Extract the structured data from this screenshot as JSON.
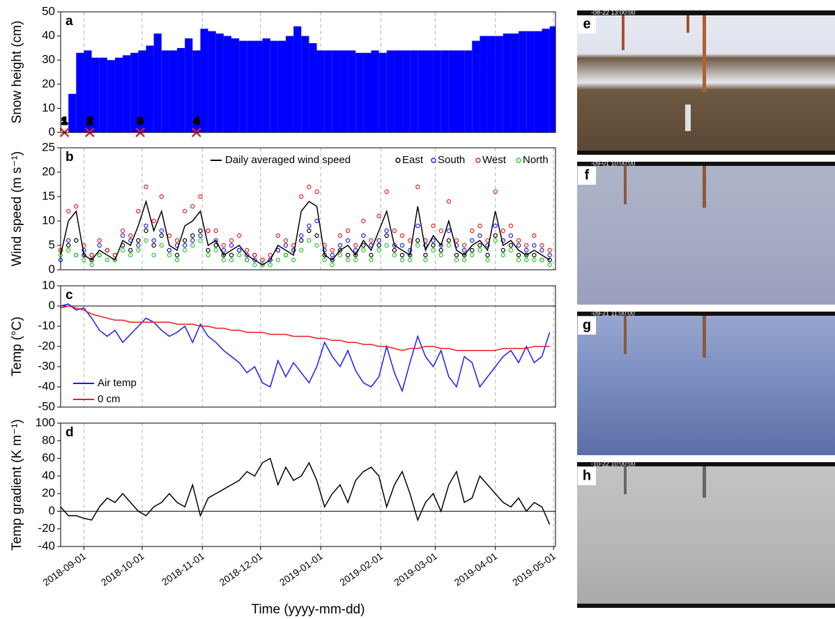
{
  "chart_data": [
    {
      "type": "bar",
      "label": "a",
      "ylabel": "Snow height (cm)",
      "x": [
        "2018-08-20",
        "2018-08-24",
        "2018-08-28",
        "2018-09-01",
        "2018-09-05",
        "2018-09-09",
        "2018-09-13",
        "2018-09-17",
        "2018-09-21",
        "2018-09-25",
        "2018-09-29",
        "2018-10-03",
        "2018-10-07",
        "2018-10-11",
        "2018-10-15",
        "2018-10-19",
        "2018-10-23",
        "2018-10-27",
        "2018-10-31",
        "2018-11-04",
        "2018-11-08",
        "2018-11-12",
        "2018-11-16",
        "2018-11-20",
        "2018-11-24",
        "2018-11-28",
        "2018-12-02",
        "2018-12-06",
        "2018-12-10",
        "2018-12-14",
        "2018-12-18",
        "2018-12-22",
        "2018-12-26",
        "2018-12-30",
        "2019-01-03",
        "2019-01-07",
        "2019-01-11",
        "2019-01-15",
        "2019-01-19",
        "2019-01-23",
        "2019-01-27",
        "2019-01-31",
        "2019-02-04",
        "2019-02-08",
        "2019-02-12",
        "2019-02-16",
        "2019-02-20",
        "2019-02-24",
        "2019-02-28",
        "2019-03-04",
        "2019-03-08",
        "2019-03-12",
        "2019-03-16",
        "2019-03-20",
        "2019-03-24",
        "2019-03-28",
        "2019-04-01",
        "2019-04-05",
        "2019-04-09",
        "2019-04-13",
        "2019-04-17",
        "2019-04-21",
        "2019-04-25",
        "2019-04-29"
      ],
      "series": [
        {
          "name": "Snow height",
          "color": "#0000ff",
          "values": [
            0,
            16,
            33,
            34,
            31,
            31,
            30,
            31,
            32,
            33,
            34,
            36,
            41,
            34,
            34,
            35,
            39,
            34,
            43,
            42,
            41,
            40,
            39,
            38,
            38,
            38,
            39,
            38,
            38,
            40,
            44,
            40,
            37,
            34,
            34,
            34,
            34,
            34,
            33,
            33,
            34,
            33,
            34,
            34,
            34,
            34,
            34,
            34,
            34,
            34,
            34,
            34,
            34,
            38,
            40,
            40,
            40,
            41,
            41,
            42,
            42,
            42,
            43,
            44
          ]
        }
      ],
      "annotations": [
        {
          "x": "2018-08-22",
          "label": "1"
        },
        {
          "x": "2018-09-04",
          "label": "2"
        },
        {
          "x": "2018-09-30",
          "label": "3"
        },
        {
          "x": "2018-10-29",
          "label": "4"
        }
      ],
      "annotation_color": "#e02020",
      "xlim": [
        "2018-08-20",
        "2019-05-02"
      ],
      "xticks": [
        "2018-09-01",
        "2018-10-01",
        "2018-11-01",
        "2018-12-01",
        "2019-01-01",
        "2019-02-01",
        "2019-03-01",
        "2019-04-01",
        "2019-05-01"
      ],
      "ylim": [
        0,
        50
      ],
      "yticks": [
        0,
        10,
        20,
        30,
        40,
        50
      ]
    },
    {
      "type": "scatter",
      "label": "b",
      "ylabel": "Wind speed (m s⁻¹)",
      "x": [
        "2018-08-20",
        "2018-08-24",
        "2018-08-28",
        "2018-09-01",
        "2018-09-05",
        "2018-09-09",
        "2018-09-13",
        "2018-09-17",
        "2018-09-21",
        "2018-09-25",
        "2018-09-29",
        "2018-10-03",
        "2018-10-07",
        "2018-10-11",
        "2018-10-15",
        "2018-10-19",
        "2018-10-23",
        "2018-10-27",
        "2018-10-31",
        "2018-11-04",
        "2018-11-08",
        "2018-11-12",
        "2018-11-16",
        "2018-11-20",
        "2018-11-24",
        "2018-11-28",
        "2018-12-02",
        "2018-12-06",
        "2018-12-10",
        "2018-12-14",
        "2018-12-18",
        "2018-12-22",
        "2018-12-26",
        "2018-12-30",
        "2019-01-03",
        "2019-01-07",
        "2019-01-11",
        "2019-01-15",
        "2019-01-19",
        "2019-01-23",
        "2019-01-27",
        "2019-01-31",
        "2019-02-04",
        "2019-02-08",
        "2019-02-12",
        "2019-02-16",
        "2019-02-20",
        "2019-02-24",
        "2019-02-28",
        "2019-03-04",
        "2019-03-08",
        "2019-03-12",
        "2019-03-16",
        "2019-03-20",
        "2019-03-24",
        "2019-03-28",
        "2019-04-01",
        "2019-04-05",
        "2019-04-09",
        "2019-04-13",
        "2019-04-17",
        "2019-04-21",
        "2019-04-25",
        "2019-04-29"
      ],
      "series": [
        {
          "name": "Daily averaged wind speed",
          "type": "line",
          "color": "#000000",
          "values": [
            3,
            10,
            12,
            3,
            2,
            4,
            3,
            2,
            6,
            5,
            9,
            14,
            8,
            12,
            5,
            4,
            9,
            10,
            12,
            5,
            6,
            3,
            4,
            5,
            3,
            2,
            1,
            2,
            5,
            4,
            3,
            12,
            14,
            13,
            3,
            2,
            4,
            5,
            3,
            6,
            4,
            8,
            12,
            5,
            4,
            3,
            13,
            4,
            7,
            5,
            10,
            4,
            3,
            5,
            6,
            4,
            12,
            5,
            6,
            4,
            3,
            4,
            3,
            2
          ]
        },
        {
          "name": "East",
          "color": "#000000",
          "values": [
            4,
            5,
            6,
            3,
            2,
            3,
            4,
            2,
            5,
            4,
            6,
            8,
            5,
            7,
            4,
            3,
            6,
            7,
            8,
            4,
            5,
            3,
            3,
            4,
            2,
            3,
            1,
            2,
            4,
            3,
            4,
            6,
            8,
            7,
            3,
            2,
            4,
            3,
            3,
            5,
            3,
            5,
            7,
            4,
            3,
            3,
            6,
            3,
            5,
            4,
            6,
            3,
            3,
            4,
            5,
            3,
            7,
            4,
            5,
            3,
            3,
            3,
            2,
            2
          ]
        },
        {
          "name": "South",
          "color": "#1a1aff",
          "values": [
            2,
            6,
            3,
            4,
            3,
            5,
            4,
            3,
            7,
            6,
            5,
            9,
            6,
            8,
            4,
            5,
            5,
            6,
            7,
            8,
            6,
            4,
            5,
            4,
            3,
            2,
            2,
            2,
            4,
            5,
            4,
            7,
            9,
            10,
            4,
            3,
            5,
            6,
            4,
            7,
            5,
            6,
            8,
            5,
            5,
            4,
            9,
            5,
            6,
            5,
            8,
            5,
            4,
            6,
            7,
            5,
            9,
            6,
            7,
            5,
            4,
            5,
            4,
            3
          ]
        },
        {
          "name": "West",
          "color": "#e81c1c",
          "values": [
            4,
            12,
            13,
            5,
            3,
            6,
            4,
            3,
            8,
            7,
            12,
            17,
            10,
            15,
            7,
            6,
            12,
            13,
            15,
            8,
            8,
            5,
            6,
            7,
            4,
            3,
            2,
            3,
            7,
            6,
            5,
            15,
            17,
            16,
            5,
            4,
            7,
            8,
            5,
            10,
            6,
            11,
            16,
            8,
            7,
            6,
            17,
            6,
            9,
            8,
            14,
            6,
            5,
            8,
            9,
            6,
            16,
            8,
            9,
            6,
            5,
            7,
            5,
            4
          ]
        },
        {
          "name": "North",
          "color": "#22cc22",
          "values": [
            3,
            4,
            3,
            2,
            1,
            3,
            2,
            2,
            4,
            3,
            4,
            6,
            3,
            5,
            3,
            2,
            4,
            5,
            6,
            3,
            4,
            2,
            2,
            3,
            2,
            1,
            1,
            1,
            2,
            3,
            2,
            4,
            6,
            5,
            2,
            1,
            3,
            2,
            2,
            4,
            2,
            4,
            5,
            3,
            2,
            2,
            5,
            2,
            4,
            3,
            5,
            2,
            2,
            3,
            4,
            2,
            6,
            3,
            4,
            2,
            2,
            2,
            2,
            1
          ]
        }
      ],
      "legend": "top",
      "xlim": [
        "2018-08-20",
        "2019-05-02"
      ],
      "xticks": [
        "2018-09-01",
        "2018-10-01",
        "2018-11-01",
        "2018-12-01",
        "2019-01-01",
        "2019-02-01",
        "2019-03-01",
        "2019-04-01",
        "2019-05-01"
      ],
      "ylim": [
        0,
        25
      ],
      "yticks": [
        0,
        5,
        10,
        15,
        20,
        25
      ]
    },
    {
      "type": "line",
      "label": "c",
      "ylabel": "Temp (°C)",
      "x": [
        "2018-08-20",
        "2018-08-24",
        "2018-08-28",
        "2018-09-01",
        "2018-09-05",
        "2018-09-09",
        "2018-09-13",
        "2018-09-17",
        "2018-09-21",
        "2018-09-25",
        "2018-09-29",
        "2018-10-03",
        "2018-10-07",
        "2018-10-11",
        "2018-10-15",
        "2018-10-19",
        "2018-10-23",
        "2018-10-27",
        "2018-10-31",
        "2018-11-04",
        "2018-11-08",
        "2018-11-12",
        "2018-11-16",
        "2018-11-20",
        "2018-11-24",
        "2018-11-28",
        "2018-12-02",
        "2018-12-06",
        "2018-12-10",
        "2018-12-14",
        "2018-12-18",
        "2018-12-22",
        "2018-12-26",
        "2018-12-30",
        "2019-01-03",
        "2019-01-07",
        "2019-01-11",
        "2019-01-15",
        "2019-01-19",
        "2019-01-23",
        "2019-01-27",
        "2019-01-31",
        "2019-02-04",
        "2019-02-08",
        "2019-02-12",
        "2019-02-16",
        "2019-02-20",
        "2019-02-24",
        "2019-02-28",
        "2019-03-04",
        "2019-03-08",
        "2019-03-12",
        "2019-03-16",
        "2019-03-20",
        "2019-03-24",
        "2019-03-28",
        "2019-04-01",
        "2019-04-05",
        "2019-04-09",
        "2019-04-13",
        "2019-04-17",
        "2019-04-21",
        "2019-04-25",
        "2019-04-29"
      ],
      "series": [
        {
          "name": "Air temp",
          "color": "#1a1aff",
          "values": [
            0,
            1,
            -2,
            -1,
            -6,
            -12,
            -15,
            -12,
            -18,
            -14,
            -10,
            -6,
            -8,
            -12,
            -15,
            -13,
            -10,
            -18,
            -9,
            -15,
            -18,
            -22,
            -25,
            -28,
            -33,
            -30,
            -38,
            -40,
            -27,
            -35,
            -28,
            -33,
            -38,
            -30,
            -18,
            -25,
            -30,
            -22,
            -32,
            -38,
            -40,
            -35,
            -20,
            -33,
            -42,
            -28,
            -15,
            -25,
            -30,
            -22,
            -35,
            -40,
            -25,
            -28,
            -40,
            -35,
            -30,
            -25,
            -22,
            -28,
            -20,
            -28,
            -25,
            -13
          ]
        },
        {
          "name": "0 cm",
          "color": "#e81c1c",
          "values": [
            -1,
            0,
            -1,
            -2,
            -4,
            -5,
            -6,
            -7,
            -7,
            -8,
            -8,
            -8,
            -8,
            -8,
            -8,
            -9,
            -9,
            -9,
            -10,
            -10,
            -11,
            -11,
            -12,
            -12,
            -13,
            -13,
            -13,
            -14,
            -14,
            -14,
            -15,
            -15,
            -15,
            -16,
            -16,
            -17,
            -17,
            -18,
            -18,
            -19,
            -19,
            -20,
            -20,
            -21,
            -22,
            -21,
            -21,
            -20,
            -20,
            -21,
            -21,
            -22,
            -22,
            -22,
            -22,
            -22,
            -22,
            -21,
            -21,
            -21,
            -21,
            -20,
            -20,
            -20
          ]
        }
      ],
      "legend": "lower left",
      "zero_line": true,
      "xlim": [
        "2018-08-20",
        "2019-05-02"
      ],
      "xticks": [
        "2018-09-01",
        "2018-10-01",
        "2018-11-01",
        "2018-12-01",
        "2019-01-01",
        "2019-02-01",
        "2019-03-01",
        "2019-04-01",
        "2019-05-01"
      ],
      "ylim": [
        -50,
        10
      ],
      "yticks": [
        -50,
        -40,
        -30,
        -20,
        -10,
        0,
        10
      ]
    },
    {
      "type": "line",
      "label": "d",
      "ylabel": "Temp gradient (K m⁻¹)",
      "xlabel": "Time (yyyy-mm-dd)",
      "x": [
        "2018-08-20",
        "2018-08-24",
        "2018-08-28",
        "2018-09-01",
        "2018-09-05",
        "2018-09-09",
        "2018-09-13",
        "2018-09-17",
        "2018-09-21",
        "2018-09-25",
        "2018-09-29",
        "2018-10-03",
        "2018-10-07",
        "2018-10-11",
        "2018-10-15",
        "2018-10-19",
        "2018-10-23",
        "2018-10-27",
        "2018-10-31",
        "2018-11-04",
        "2018-11-08",
        "2018-11-12",
        "2018-11-16",
        "2018-11-20",
        "2018-11-24",
        "2018-11-28",
        "2018-12-02",
        "2018-12-06",
        "2018-12-10",
        "2018-12-14",
        "2018-12-18",
        "2018-12-22",
        "2018-12-26",
        "2018-12-30",
        "2019-01-03",
        "2019-01-07",
        "2019-01-11",
        "2019-01-15",
        "2019-01-19",
        "2019-01-23",
        "2019-01-27",
        "2019-01-31",
        "2019-02-04",
        "2019-02-08",
        "2019-02-12",
        "2019-02-16",
        "2019-02-20",
        "2019-02-24",
        "2019-02-28",
        "2019-03-04",
        "2019-03-08",
        "2019-03-12",
        "2019-03-16",
        "2019-03-20",
        "2019-03-24",
        "2019-03-28",
        "2019-04-01",
        "2019-04-05",
        "2019-04-09",
        "2019-04-13",
        "2019-04-17",
        "2019-04-21",
        "2019-04-25",
        "2019-04-29"
      ],
      "series": [
        {
          "name": "Temp gradient",
          "color": "#000000",
          "values": [
            5,
            -5,
            -5,
            -8,
            -10,
            5,
            15,
            10,
            20,
            10,
            0,
            -5,
            5,
            10,
            20,
            10,
            5,
            30,
            -5,
            15,
            20,
            25,
            30,
            35,
            45,
            40,
            55,
            60,
            30,
            50,
            35,
            40,
            55,
            35,
            5,
            20,
            30,
            10,
            35,
            45,
            50,
            40,
            5,
            30,
            45,
            20,
            -10,
            10,
            20,
            0,
            30,
            45,
            10,
            15,
            40,
            30,
            20,
            10,
            5,
            15,
            0,
            10,
            5,
            -15
          ]
        }
      ],
      "zero_line": true,
      "xlim": [
        "2018-08-20",
        "2019-05-02"
      ],
      "xticks": [
        "2018-09-01",
        "2018-10-01",
        "2018-11-01",
        "2018-12-01",
        "2019-01-01",
        "2019-02-01",
        "2019-03-01",
        "2019-04-01",
        "2019-05-01"
      ],
      "ylim": [
        -40,
        100
      ],
      "yticks": [
        -40,
        -20,
        0,
        20,
        40,
        60,
        80,
        100
      ]
    }
  ],
  "photos": [
    {
      "label": "e",
      "timestamp": "-08-22 13:00:00"
    },
    {
      "label": "f",
      "timestamp": "-09-01 10:00:00"
    },
    {
      "label": "g",
      "timestamp": "-09-21 11:00:00"
    },
    {
      "label": "h",
      "timestamp": "-10-22 10:00:00"
    }
  ]
}
